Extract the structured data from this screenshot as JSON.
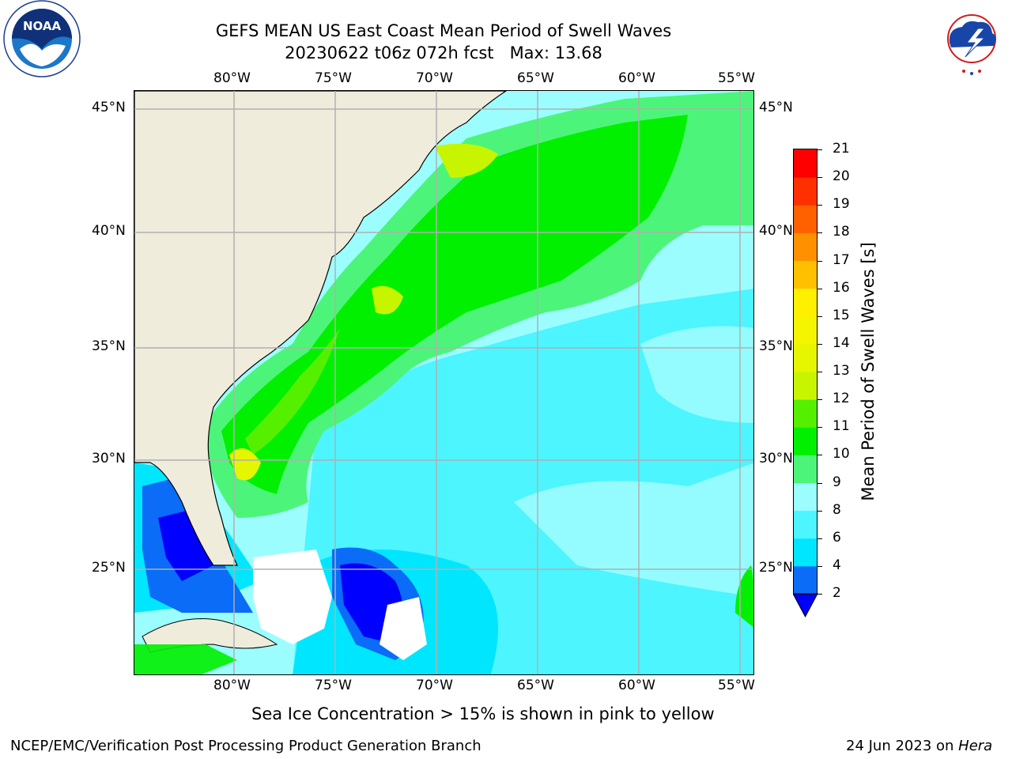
{
  "title": {
    "line1": "GEFS MEAN US East Coast Mean Period of Swell Waves",
    "line2": "20230622 t06z 072h fcst   Max: 13.68"
  },
  "logos": {
    "left": {
      "name": "NOAA",
      "ring_text": "NATIONAL OCEANIC AND ATMOSPHERIC ADMINISTRATION",
      "bottom_text": "U.S. DEPARTMENT OF COMMERCE"
    },
    "right": {
      "ring_text": "NATIONAL WEATHER SERVICE"
    }
  },
  "map": {
    "lon_labels": [
      "80°W",
      "75°W",
      "70°W",
      "65°W",
      "60°W",
      "55°W"
    ],
    "lat_labels": [
      "45°N",
      "40°N",
      "35°N",
      "30°N",
      "25°N"
    ],
    "colors": {
      "land": "#efecdc",
      "grid": "#b0b0b0",
      "no_data": "#ffffff"
    }
  },
  "colorbar": {
    "title": "Mean Period of Swell Waves [s]",
    "ticks": [
      "21",
      "20",
      "19",
      "18",
      "17",
      "16",
      "15",
      "14",
      "13",
      "12",
      "11",
      "10",
      "9",
      "8",
      "6",
      "4",
      "2"
    ],
    "levels": [
      {
        "value": "2-4",
        "color": "#0a6cf7"
      },
      {
        "value": "4-6",
        "color": "#00e6ff"
      },
      {
        "value": "6-8",
        "color": "#4cf5ff"
      },
      {
        "value": "8-9",
        "color": "#9cfdff"
      },
      {
        "value": "9-10",
        "color": "#4cf57a"
      },
      {
        "value": "10-11",
        "color": "#00f000"
      },
      {
        "value": "11-12",
        "color": "#55f000"
      },
      {
        "value": "12-13",
        "color": "#c7f500"
      },
      {
        "value": "13-14",
        "color": "#e6f500"
      },
      {
        "value": "14-15",
        "color": "#f5f500"
      },
      {
        "value": "15-16",
        "color": "#fff000"
      },
      {
        "value": "16-17",
        "color": "#ffc000"
      },
      {
        "value": "17-18",
        "color": "#ff9000"
      },
      {
        "value": "18-19",
        "color": "#ff6000"
      },
      {
        "value": "19-20",
        "color": "#ff3000"
      },
      {
        "value": "20-21",
        "color": "#ff0000"
      }
    ],
    "under_color": "#0000ff"
  },
  "notes": {
    "sea_ice": "Sea Ice Concentration > 15% is shown in pink to yellow",
    "credit": "NCEP/EMC/Verification Post Processing Product Generation Branch",
    "date": "24 Jun 2023 on ",
    "host": "Hera"
  }
}
